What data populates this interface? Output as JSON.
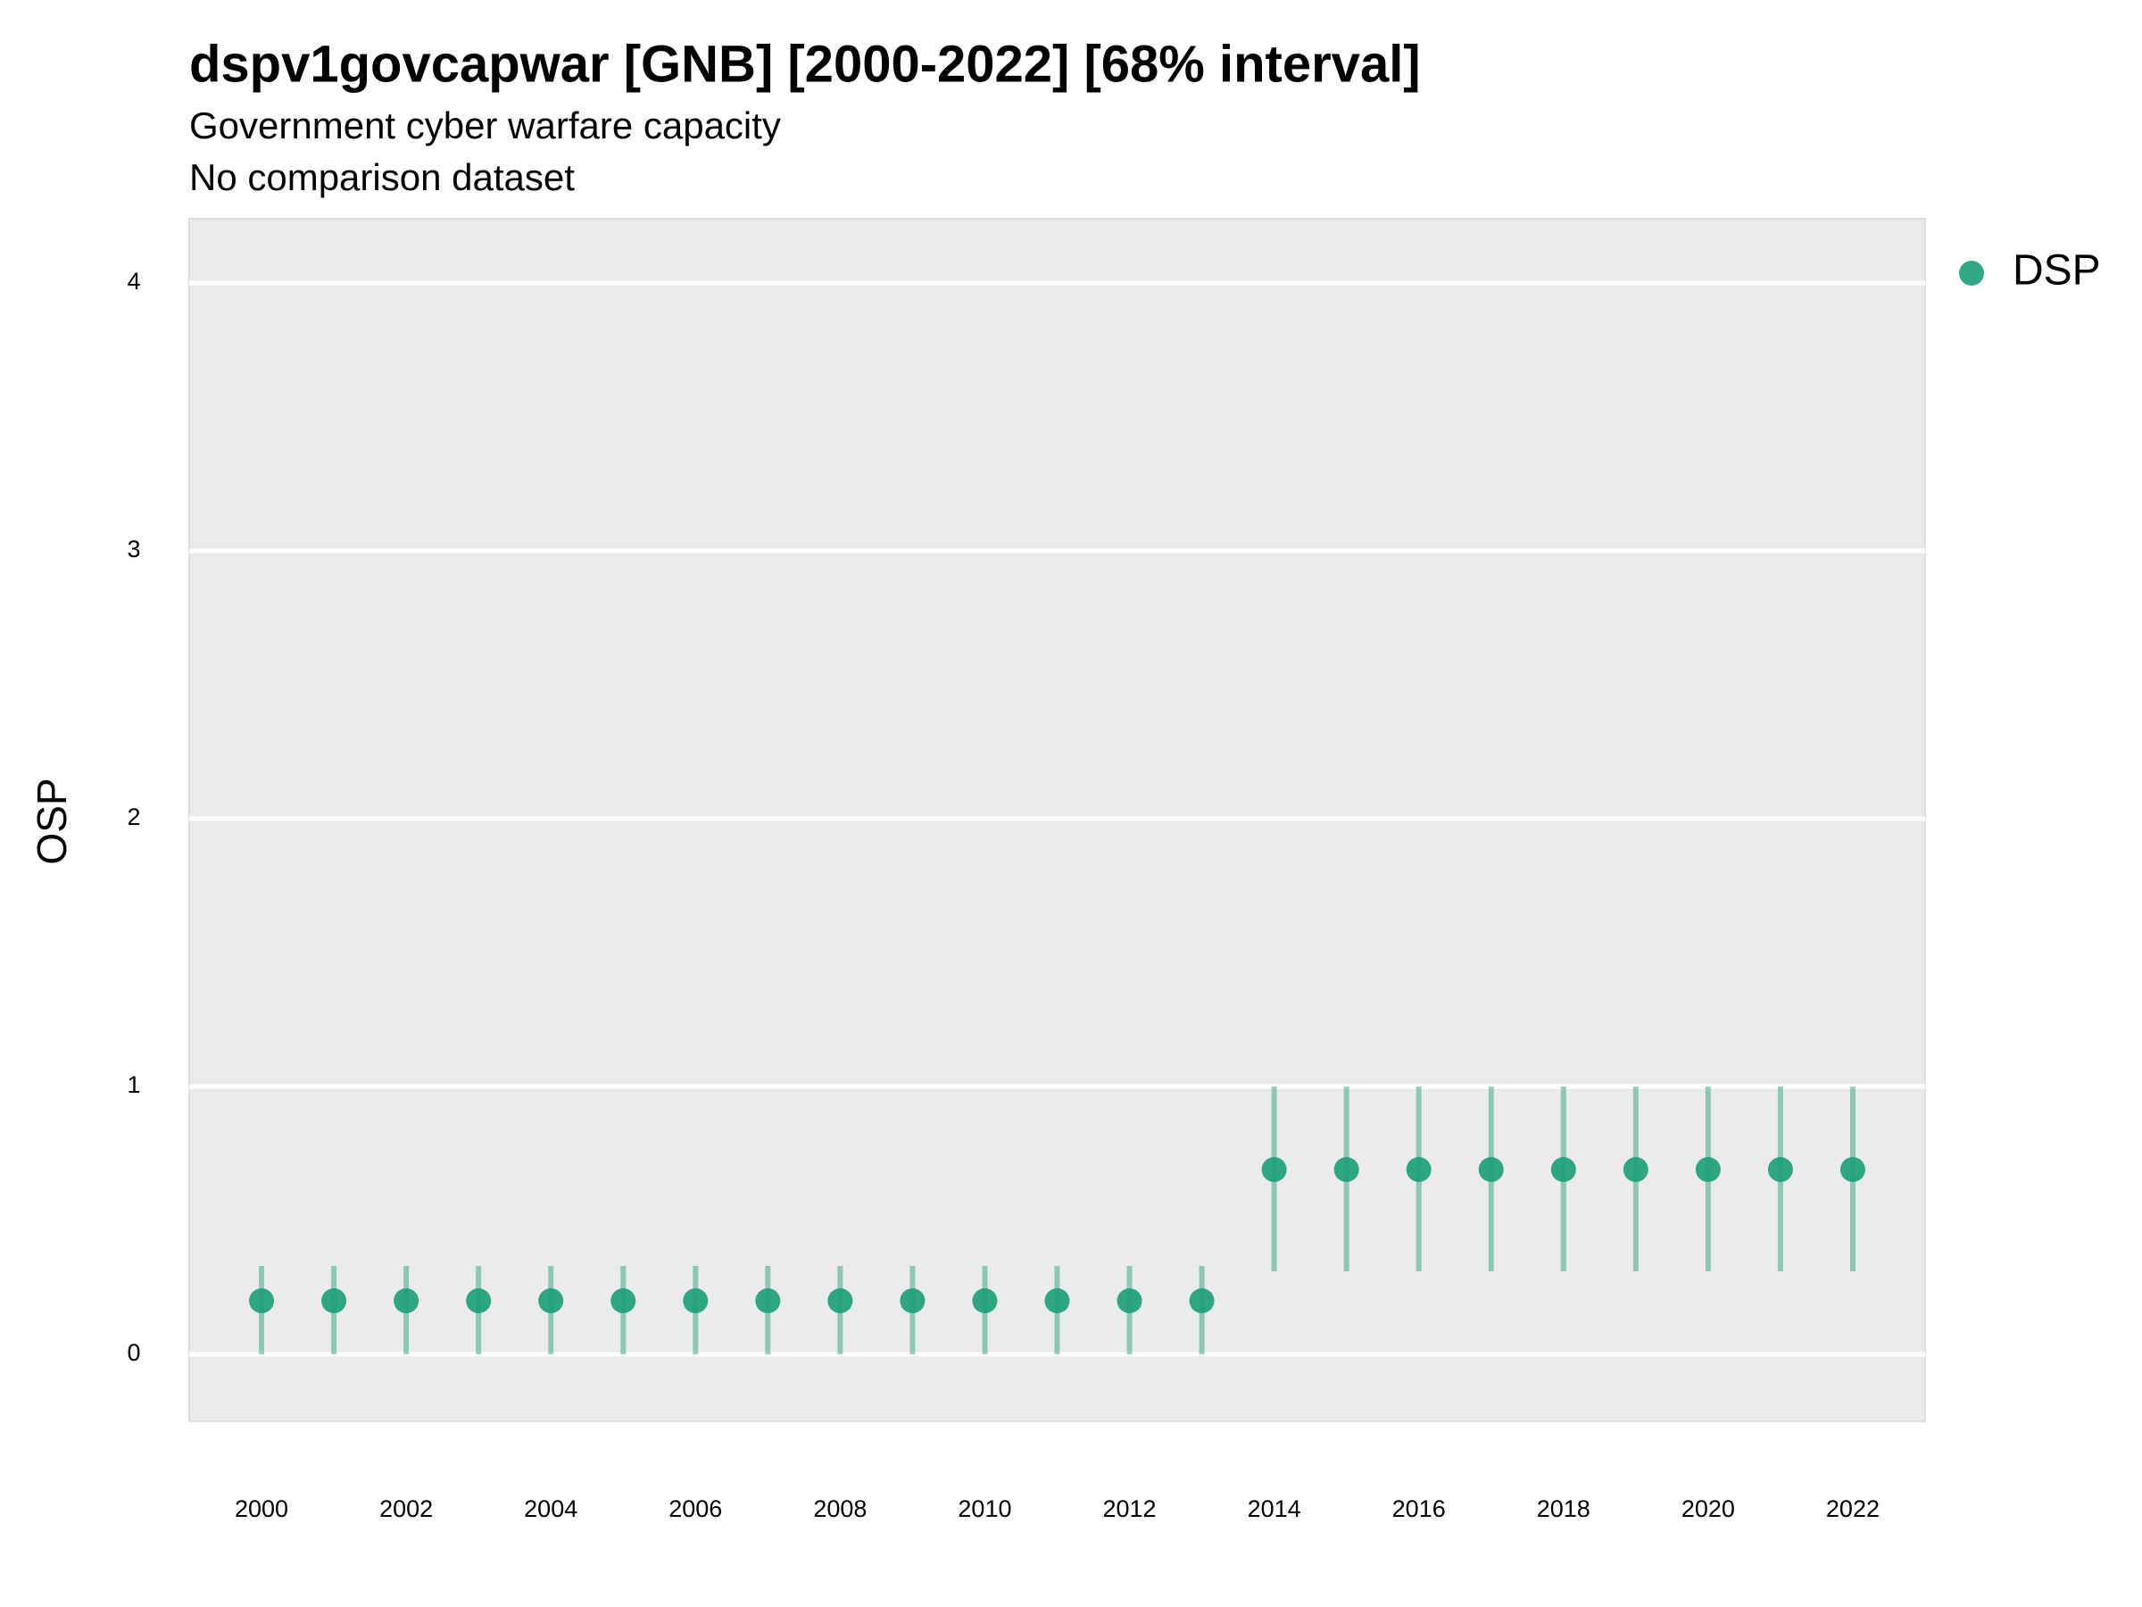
{
  "chart_data": {
    "type": "scatter",
    "title": "dspv1govcapwar [GNB] [2000-2022] [68% interval]",
    "subtitle": [
      "Government cyber warfare capacity",
      "No comparison dataset"
    ],
    "y_label": "OSP",
    "x": [
      2000,
      2001,
      2002,
      2003,
      2004,
      2005,
      2006,
      2007,
      2008,
      2009,
      2010,
      2011,
      2012,
      2013,
      2014,
      2015,
      2016,
      2017,
      2018,
      2019,
      2020,
      2021,
      2022
    ],
    "series": [
      {
        "name": "DSP",
        "color": "#1b9e77",
        "values": [
          0.2,
          0.2,
          0.2,
          0.2,
          0.2,
          0.2,
          0.2,
          0.2,
          0.2,
          0.2,
          0.2,
          0.2,
          0.2,
          0.2,
          0.69,
          0.69,
          0.69,
          0.69,
          0.69,
          0.69,
          0.69,
          0.69,
          0.69
        ],
        "lower": [
          0,
          0,
          0,
          0,
          0,
          0,
          0,
          0,
          0,
          0,
          0,
          0,
          0,
          0,
          0.31,
          0.31,
          0.31,
          0.31,
          0.31,
          0.31,
          0.31,
          0.31,
          0.31
        ],
        "upper": [
          0.33,
          0.33,
          0.33,
          0.33,
          0.33,
          0.33,
          0.33,
          0.33,
          0.33,
          0.33,
          0.33,
          0.33,
          0.33,
          0.33,
          1,
          1,
          1,
          1,
          1,
          1,
          1,
          1,
          1
        ]
      }
    ],
    "xlim": [
      1999,
      2023
    ],
    "xticks": [
      2000,
      2002,
      2004,
      2006,
      2008,
      2010,
      2012,
      2014,
      2016,
      2018,
      2020,
      2022
    ],
    "ylim": [
      -0.25,
      4.24
    ],
    "yticks": [
      0,
      1,
      2,
      3,
      4
    ],
    "grid": true,
    "legend": "right"
  }
}
